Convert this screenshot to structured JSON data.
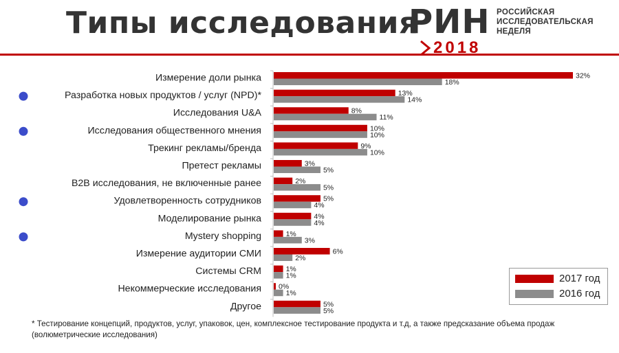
{
  "header": {
    "title": "Типы исследования",
    "logo": {
      "mark": "РИН",
      "lines": [
        "РОССИЙСКАЯ",
        "ИССЛЕДОВАТЕЛЬСКАЯ",
        "НЕДЕЛЯ"
      ],
      "year": "2018"
    }
  },
  "colors": {
    "accent": "#c00000",
    "series_2017": "#c00000",
    "series_2016": "#8c8c8c",
    "marker": "#3b4cca"
  },
  "chart_data": {
    "type": "bar",
    "orientation": "horizontal",
    "categories": [
      "Измерение доли рынка",
      "Разработка новых продуктов / услуг (NPD)*",
      "Исследования U&A",
      "Исследования общественного мнения",
      "Трекинг рекламы/бренда",
      "Претест рекламы",
      "B2B исследования, не включенные ранее",
      "Удовлетворенность сотрудников",
      "Моделирование рынка",
      "Mystery shopping",
      "Измерение аудитории СМИ",
      "Системы CRM",
      "Некоммерческие исследования",
      "Другое"
    ],
    "marked_categories": [
      1,
      3,
      7,
      9
    ],
    "series": [
      {
        "name": "2017 год",
        "values": [
          32,
          13,
          8,
          10,
          9,
          3,
          2,
          5,
          4,
          1,
          6,
          1,
          0,
          5
        ],
        "labels": [
          "32%",
          "13%",
          "8%",
          "10%",
          "9%",
          "3%",
          "2%",
          "5%",
          "4%",
          "1%",
          "6%",
          "1%",
          "0%",
          "5%"
        ]
      },
      {
        "name": "2016 год",
        "values": [
          18,
          14,
          11,
          10,
          10,
          5,
          5,
          4,
          4,
          3,
          2,
          1,
          1,
          5
        ],
        "labels": [
          "18%",
          "14%",
          "11%",
          "10%",
          "10%",
          "5%",
          "5%",
          "4%",
          "4%",
          "3%",
          "2%",
          "1%",
          "1%",
          "5%"
        ]
      }
    ],
    "xlim": [
      0,
      32
    ],
    "legend_position": "bottom-right",
    "grid": false
  },
  "footnote": "* Тестирование концепций, продуктов, услуг, упаковок, цен, комплексное тестирование продукта и т.д, а также предсказание объема продаж (волюметрические исследования)"
}
